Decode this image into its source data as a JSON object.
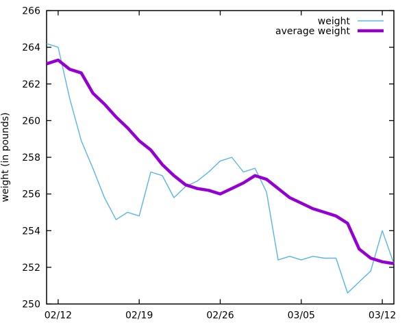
{
  "figure": {
    "background": "#ffffff",
    "border_color": "#000000",
    "text_color": "#000000"
  },
  "chart_data": {
    "type": "line",
    "title": "",
    "xlabel": "",
    "ylabel": "weight (in pounds)",
    "ylim": [
      250,
      266
    ],
    "ytick_step": 2,
    "ytick_labels": [
      "250",
      "252",
      "254",
      "256",
      "258",
      "260",
      "262",
      "264",
      "266"
    ],
    "grid": false,
    "legend_position": "top-right-inside",
    "x_dates": [
      "02/11",
      "02/12",
      "02/13",
      "02/14",
      "02/15",
      "02/16",
      "02/17",
      "02/18",
      "02/19",
      "02/20",
      "02/21",
      "02/22",
      "02/23",
      "02/24",
      "02/25",
      "02/26",
      "02/27",
      "02/28",
      "03/01",
      "03/02",
      "03/03",
      "03/04",
      "03/05",
      "03/06",
      "03/07",
      "03/08",
      "03/09",
      "03/10",
      "03/11",
      "03/12",
      "03/13"
    ],
    "xtick_labels": [
      "02/12",
      "02/19",
      "02/26",
      "03/05",
      "03/12"
    ],
    "xtick_indices": [
      1,
      8,
      15,
      22,
      29
    ],
    "series": [
      {
        "name": "weight",
        "color": "#56b4e9",
        "width": 1.4,
        "values": [
          264.2,
          264.0,
          261.2,
          258.9,
          257.4,
          255.8,
          254.6,
          255.0,
          254.8,
          257.2,
          257.0,
          255.8,
          256.4,
          256.7,
          257.2,
          257.8,
          258.0,
          257.2,
          257.4,
          256.1,
          252.4,
          252.6,
          252.4,
          252.6,
          252.5,
          252.5,
          250.6,
          251.2,
          251.8,
          254.0,
          252.2
        ]
      },
      {
        "name": "average weight",
        "color": "#9400d3",
        "width": 4.5,
        "values": [
          263.1,
          263.3,
          262.8,
          262.6,
          261.5,
          260.9,
          260.2,
          259.6,
          258.9,
          258.4,
          257.6,
          257.0,
          256.5,
          256.3,
          256.2,
          256.0,
          256.3,
          256.6,
          257.0,
          256.8,
          256.3,
          255.8,
          255.5,
          255.2,
          255.0,
          254.8,
          254.4,
          253.0,
          252.5,
          252.3,
          252.2
        ]
      }
    ]
  }
}
